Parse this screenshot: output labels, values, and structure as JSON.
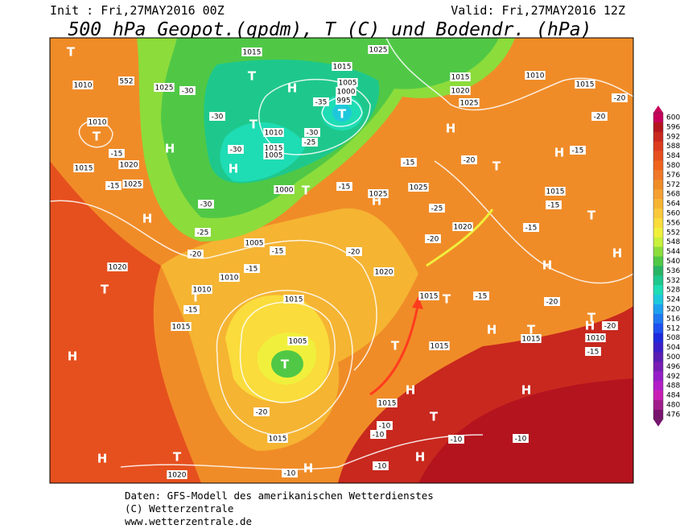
{
  "header": {
    "init": "Init : Fri,27MAY2016 00Z",
    "valid": "Valid: Fri,27MAY2016 12Z",
    "title": "500 hPa Geopot.(gpdm), T (C) und Bodendr. (hPa)"
  },
  "legend": {
    "values": [
      600,
      596,
      592,
      588,
      584,
      580,
      576,
      572,
      568,
      564,
      560,
      556,
      552,
      548,
      544,
      540,
      536,
      532,
      528,
      524,
      520,
      516,
      512,
      508,
      504,
      500,
      496,
      492,
      488,
      484,
      480,
      476
    ],
    "colors": [
      "#c8005a",
      "#b4141e",
      "#c8281e",
      "#dc3c1e",
      "#e6501e",
      "#f0641e",
      "#f07828",
      "#f08c28",
      "#f5a032",
      "#f5b432",
      "#fac83c",
      "#fadc3c",
      "#f0f03c",
      "#c8f03c",
      "#8cdc3c",
      "#50c846",
      "#28b464",
      "#1ec88c",
      "#1edcb4",
      "#1ec8dc",
      "#1ea0f0",
      "#1e78f0",
      "#1e50f0",
      "#1e28dc",
      "#3c1ec8",
      "#5a1eb4",
      "#781eb4",
      "#961ec8",
      "#b41ec8",
      "#c81eb4",
      "#a01e8c",
      "#78146e"
    ]
  },
  "map": {
    "labels": [
      "H",
      "H",
      "H",
      "H",
      "H",
      "H",
      "H",
      "H",
      "H",
      "H",
      "H",
      "H",
      "H",
      "H",
      "H",
      "H",
      "H",
      "T",
      "T",
      "T",
      "T",
      "T",
      "T",
      "T",
      "T",
      "T",
      "T",
      "T",
      "T",
      "T",
      "T",
      "T",
      "T",
      "T",
      "1010",
      "1010",
      "1015",
      "1020",
      "1025",
      "1025",
      "552",
      "1015",
      "1015",
      "1005",
      "1000",
      "995",
      "1025",
      "1010",
      "1015",
      "1005",
      "1000",
      "1015",
      "1020",
      "1025",
      "1010",
      "1015",
      "1025",
      "1025",
      "1015",
      "1020",
      "1020",
      "1005",
      "1010",
      "1010",
      "1015",
      "1015",
      "1005",
      "1015",
      "1015",
      "1020",
      "1015",
      "1015",
      "1020",
      "1015",
      "1010",
      "-15",
      "-15",
      "-30",
      "-30",
      "-30",
      "-30",
      "-25",
      "-20",
      "-15",
      "-15",
      "-15",
      "-15",
      "-20",
      "-25",
      "-30",
      "-35",
      "-25",
      "-20",
      "-20",
      "-20",
      "-20",
      "-15",
      "-15",
      "-15",
      "-15",
      "-20",
      "-15",
      "-20",
      "-10",
      "-10",
      "-10",
      "-10",
      "-10",
      "-10",
      "-15",
      "-20"
    ]
  },
  "footer": {
    "line1": "Daten: GFS-Modell des amerikanischen Wetterdienstes",
    "line2": "(C) Wetterzentrale",
    "line3": "www.wetterzentrale.de"
  }
}
